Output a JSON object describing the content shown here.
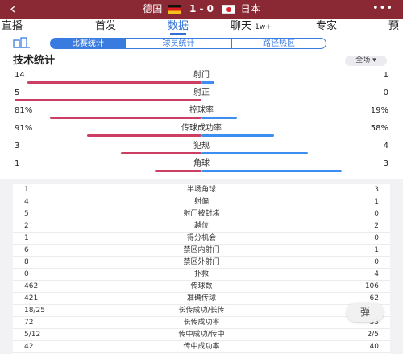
{
  "header": {
    "back_icon": "‹",
    "home_team": "德国",
    "score": "1 - 0",
    "away_team": "日本",
    "more_icon": "•••"
  },
  "nav_tabs": [
    {
      "label": "直播"
    },
    {
      "label": "首发"
    },
    {
      "label": "数据"
    },
    {
      "label": "聊天",
      "badge": "1w+"
    },
    {
      "label": "专家"
    },
    {
      "label": "预"
    }
  ],
  "active_nav": "数据",
  "sub_tabs": {
    "items": [
      {
        "label": "比赛统计"
      },
      {
        "label": "球员统计"
      },
      {
        "label": "路径热区"
      }
    ],
    "active": "比赛统计"
  },
  "section": {
    "title": "技术统计",
    "scope": "全场"
  },
  "comparison_stats": [
    {
      "home": "14",
      "label": "射门",
      "away": "1",
      "home_share": 0.93,
      "away_share": 0.07
    },
    {
      "home": "5",
      "label": "射正",
      "away": "0",
      "home_share": 1.0,
      "away_share": 0.0
    },
    {
      "home": "81%",
      "label": "控球率",
      "away": "19%",
      "home_share": 0.81,
      "away_share": 0.19
    },
    {
      "home": "91%",
      "label": "传球成功率",
      "away": "58%",
      "home_share": 0.61,
      "away_share": 0.39
    },
    {
      "home": "3",
      "label": "犯规",
      "away": "4",
      "home_share": 0.43,
      "away_share": 0.57
    },
    {
      "home": "1",
      "label": "角球",
      "away": "3",
      "home_share": 0.25,
      "away_share": 0.75
    }
  ],
  "detail_stats": [
    {
      "home": "1",
      "label": "半场角球",
      "away": "3"
    },
    {
      "home": "4",
      "label": "射偏",
      "away": "1"
    },
    {
      "home": "5",
      "label": "射门被封堵",
      "away": "0"
    },
    {
      "home": "2",
      "label": "越位",
      "away": "2"
    },
    {
      "home": "1",
      "label": "得分机会",
      "away": "0"
    },
    {
      "home": "6",
      "label": "禁区内射门",
      "away": "1"
    },
    {
      "home": "8",
      "label": "禁区外射门",
      "away": "0"
    },
    {
      "home": "0",
      "label": "扑救",
      "away": "4"
    },
    {
      "home": "462",
      "label": "传球数",
      "away": "106"
    },
    {
      "home": "421",
      "label": "准确传球",
      "away": "62"
    },
    {
      "home": "18/25",
      "label": "长传成功/长传",
      "away": ""
    },
    {
      "home": "72",
      "label": "长传成功率",
      "away": "33"
    },
    {
      "home": "5/12",
      "label": "传中成功/传中",
      "away": "2/5"
    },
    {
      "home": "42",
      "label": "传中成功率",
      "away": "40"
    }
  ],
  "danmu_button": "弹",
  "colors": {
    "home_bar": "#cc3e63",
    "away_bar": "#3c8ff0",
    "header_bg": "#8a2833",
    "accent": "#3a7be0"
  }
}
